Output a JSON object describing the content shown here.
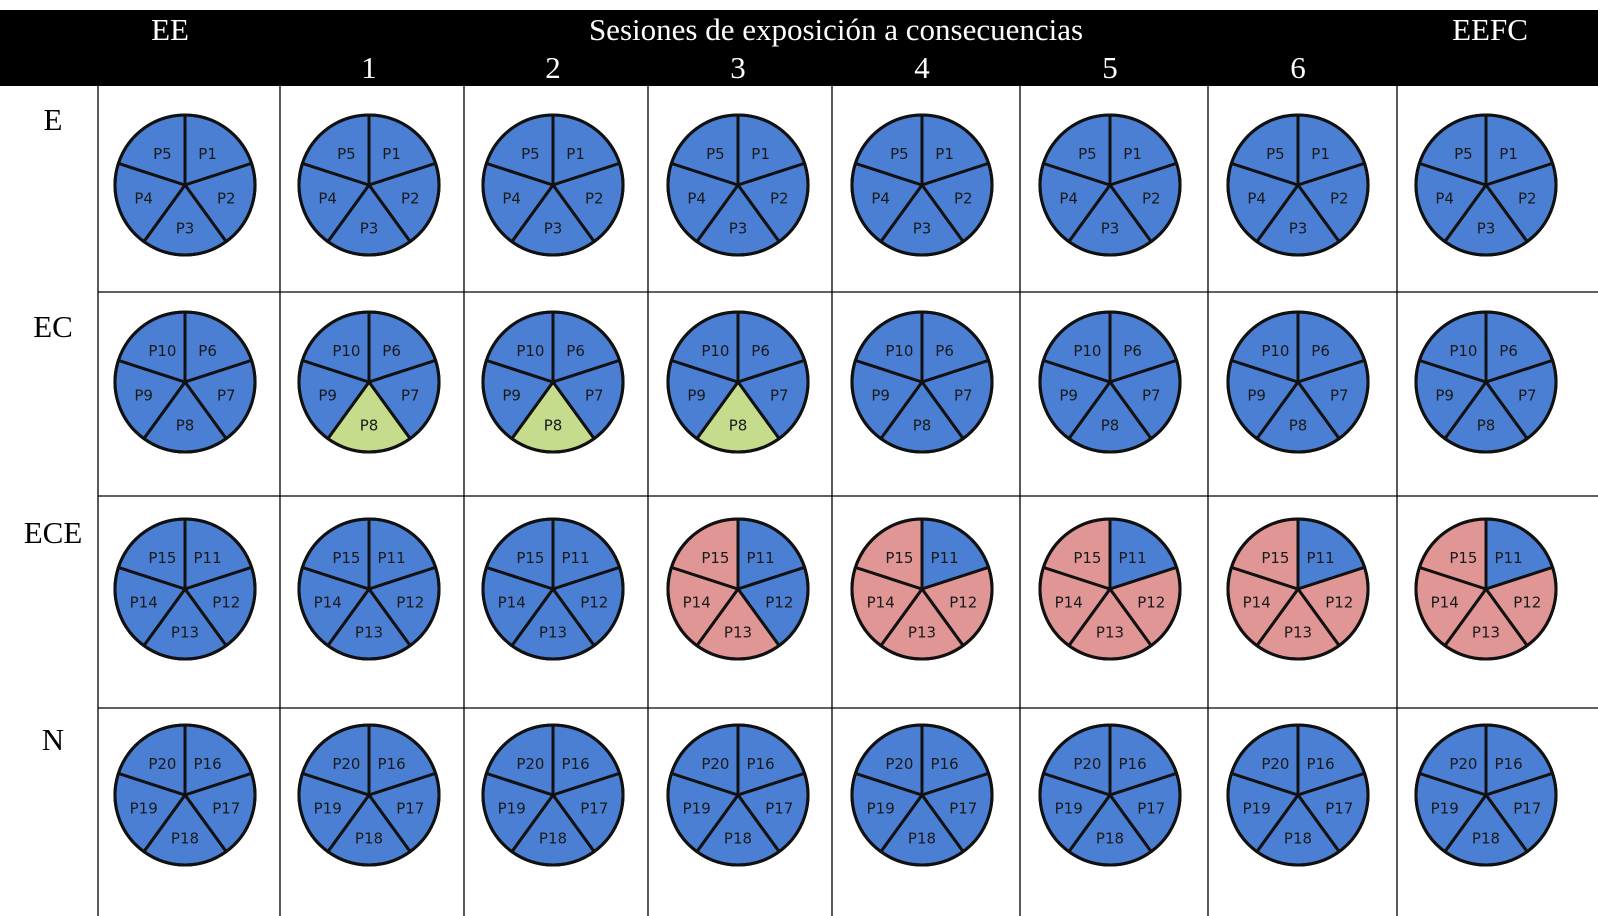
{
  "header": {
    "left_label": "EE",
    "title": "Sesiones de exposición a consecuencias",
    "right_label": "EEFC",
    "sessions": [
      "1",
      "2",
      "3",
      "4",
      "5",
      "6"
    ]
  },
  "colors": {
    "header_bg": "#000000",
    "header_text": "#ffffff",
    "wedge_default": "#4a7fd4",
    "wedge_green": "#c5dc8c",
    "wedge_red": "#e19696",
    "wedge_stroke": "#111111",
    "grid_line": "#000000"
  },
  "legend_colors_meaning": {
    "blue": "#4a7fd4",
    "green": "#c5dc8c",
    "red": "#e19696"
  },
  "rows": [
    {
      "label": "E",
      "participants": [
        "P1",
        "P2",
        "P3",
        "P4",
        "P5"
      ],
      "colors": [
        [
          "blue",
          "blue",
          "blue",
          "blue",
          "blue"
        ],
        [
          "blue",
          "blue",
          "blue",
          "blue",
          "blue"
        ],
        [
          "blue",
          "blue",
          "blue",
          "blue",
          "blue"
        ],
        [
          "blue",
          "blue",
          "blue",
          "blue",
          "blue"
        ],
        [
          "blue",
          "blue",
          "blue",
          "blue",
          "blue"
        ],
        [
          "blue",
          "blue",
          "blue",
          "blue",
          "blue"
        ],
        [
          "blue",
          "blue",
          "blue",
          "blue",
          "blue"
        ],
        [
          "blue",
          "blue",
          "blue",
          "blue",
          "blue"
        ]
      ]
    },
    {
      "label": "EC",
      "participants": [
        "P6",
        "P7",
        "P8",
        "P9",
        "P10"
      ],
      "colors": [
        [
          "blue",
          "blue",
          "blue",
          "blue",
          "blue"
        ],
        [
          "blue",
          "blue",
          "green",
          "blue",
          "blue"
        ],
        [
          "blue",
          "blue",
          "green",
          "blue",
          "blue"
        ],
        [
          "blue",
          "blue",
          "green",
          "blue",
          "blue"
        ],
        [
          "blue",
          "blue",
          "blue",
          "blue",
          "blue"
        ],
        [
          "blue",
          "blue",
          "blue",
          "blue",
          "blue"
        ],
        [
          "blue",
          "blue",
          "blue",
          "blue",
          "blue"
        ],
        [
          "blue",
          "blue",
          "blue",
          "blue",
          "blue"
        ]
      ]
    },
    {
      "label": "ECE",
      "participants": [
        "P11",
        "P12",
        "P13",
        "P14",
        "P15"
      ],
      "colors": [
        [
          "blue",
          "blue",
          "blue",
          "blue",
          "blue"
        ],
        [
          "blue",
          "blue",
          "blue",
          "blue",
          "blue"
        ],
        [
          "blue",
          "blue",
          "blue",
          "blue",
          "blue"
        ],
        [
          "blue",
          "blue",
          "red",
          "red",
          "red"
        ],
        [
          "blue",
          "red",
          "red",
          "red",
          "red"
        ],
        [
          "blue",
          "red",
          "red",
          "red",
          "red"
        ],
        [
          "blue",
          "red",
          "red",
          "red",
          "red"
        ],
        [
          "blue",
          "red",
          "red",
          "red",
          "red"
        ]
      ]
    },
    {
      "label": "N",
      "participants": [
        "P16",
        "P17",
        "P18",
        "P19",
        "P20"
      ],
      "colors": [
        [
          "blue",
          "blue",
          "blue",
          "blue",
          "blue"
        ],
        [
          "blue",
          "blue",
          "blue",
          "blue",
          "blue"
        ],
        [
          "blue",
          "blue",
          "blue",
          "blue",
          "blue"
        ],
        [
          "blue",
          "blue",
          "blue",
          "blue",
          "blue"
        ],
        [
          "blue",
          "blue",
          "blue",
          "blue",
          "blue"
        ],
        [
          "blue",
          "blue",
          "blue",
          "blue",
          "blue"
        ],
        [
          "blue",
          "blue",
          "blue",
          "blue",
          "blue"
        ],
        [
          "blue",
          "blue",
          "blue",
          "blue",
          "blue"
        ]
      ]
    }
  ]
}
